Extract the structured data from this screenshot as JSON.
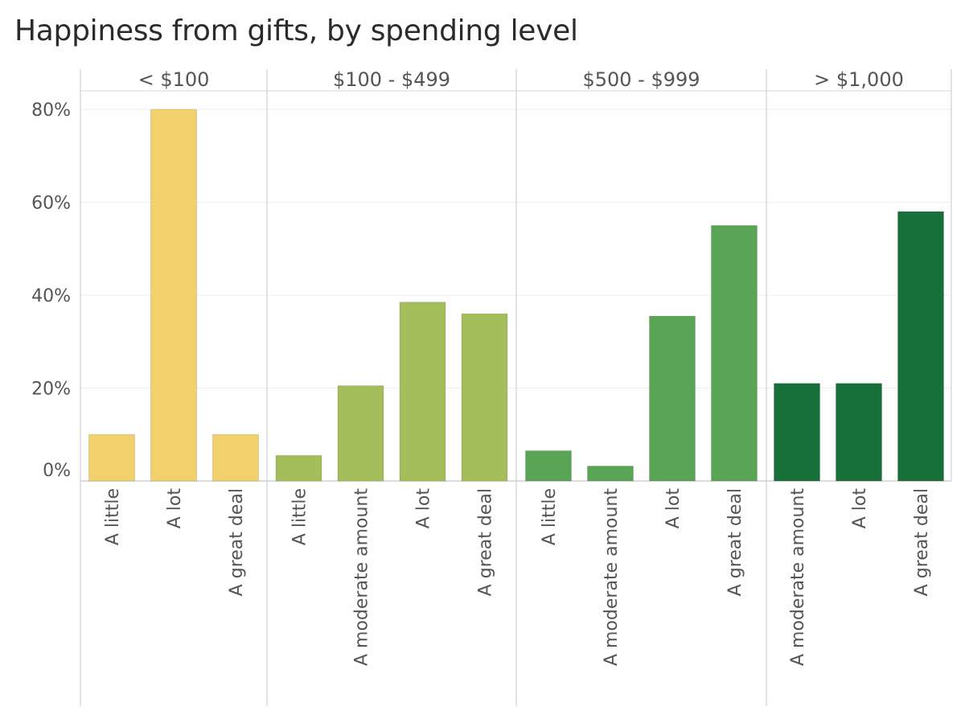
{
  "chart_data": {
    "type": "bar",
    "title": "Happiness from gifts, by spending level",
    "xlabel": "",
    "ylabel": "",
    "ylim": [
      0,
      80
    ],
    "y_ticks": [
      "0%",
      "20%",
      "40%",
      "60%",
      "80%"
    ],
    "y_tick_values": [
      0,
      20,
      40,
      60,
      80
    ],
    "grid": true,
    "panels": [
      {
        "name": "< $100",
        "color": "#f2d06b",
        "categories": [
          "A little",
          "A lot",
          "A great deal"
        ],
        "values": [
          10,
          80,
          10
        ]
      },
      {
        "name": "$100 - $499",
        "color": "#a3be5b",
        "categories": [
          "A little",
          "A moderate amount",
          "A lot",
          "A great deal"
        ],
        "values": [
          5.5,
          20.5,
          38.5,
          36
        ]
      },
      {
        "name": "$500 - $999",
        "color": "#5aa456",
        "categories": [
          "A little",
          "A moderate amount",
          "A lot",
          "A great deal"
        ],
        "values": [
          6.5,
          3.2,
          35.5,
          55
        ]
      },
      {
        "name": "> $1,000",
        "color": "#17703a",
        "categories": [
          "A moderate amount",
          "A lot",
          "A great deal"
        ],
        "values": [
          21,
          21,
          58
        ]
      }
    ]
  }
}
